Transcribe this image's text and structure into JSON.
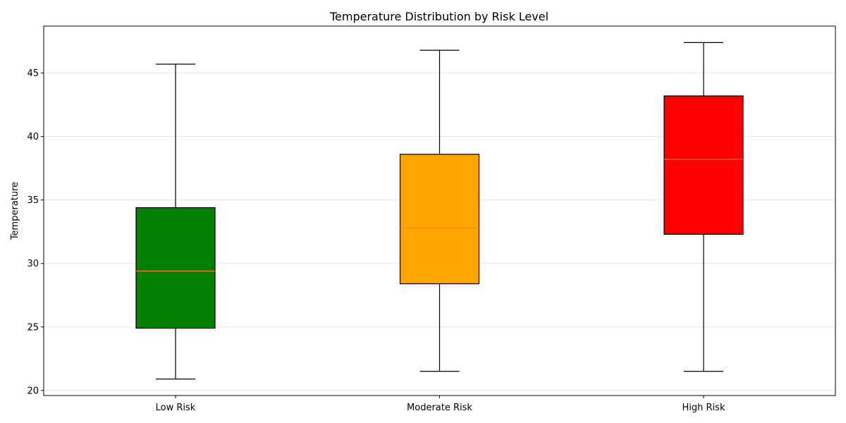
{
  "chart_data": {
    "type": "box",
    "title": "Temperature Distribution by Risk Level",
    "xlabel": "",
    "ylabel": "Temperature",
    "ylim": [
      19.6,
      48.7
    ],
    "yticks": [
      20,
      25,
      30,
      35,
      40,
      45
    ],
    "grid": {
      "y": true,
      "x": false
    },
    "categories": [
      "Low Risk",
      "Moderate Risk",
      "High Risk"
    ],
    "boxes": [
      {
        "category": "Low Risk",
        "whisker_low": 20.9,
        "q1": 24.9,
        "median": 29.4,
        "q3": 34.4,
        "whisker_high": 45.7,
        "color": "#008000"
      },
      {
        "category": "Moderate Risk",
        "whisker_low": 21.5,
        "q1": 28.4,
        "median": 32.8,
        "q3": 38.6,
        "whisker_high": 46.8,
        "color": "#FFA500"
      },
      {
        "category": "High Risk",
        "whisker_low": 21.5,
        "q1": 32.3,
        "median": 38.2,
        "q3": 43.2,
        "whisker_high": 47.4,
        "color": "#FF0000"
      }
    ],
    "median_color": "#FF7F0E"
  }
}
